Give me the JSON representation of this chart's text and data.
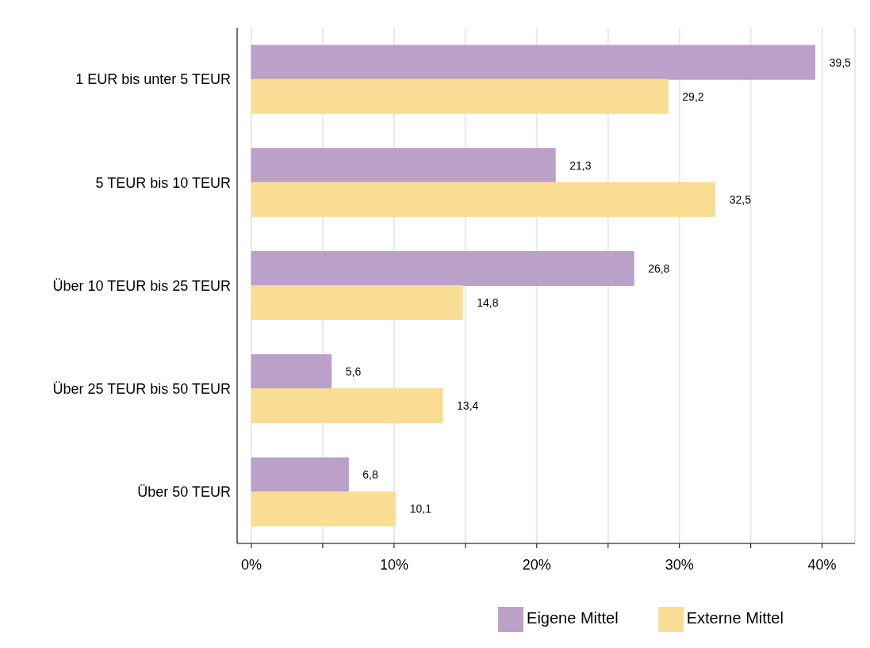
{
  "chart_data": {
    "type": "bar",
    "orientation": "horizontal",
    "categories": [
      "1 EUR bis unter 5 TEUR",
      "5 TEUR bis 10 TEUR",
      "Über 10 TEUR bis 25 TEUR",
      "Über 25 TEUR bis 50 TEUR",
      "Über 50 TEUR"
    ],
    "series": [
      {
        "name": "Eigene Mittel",
        "color": "#bba0c8",
        "values": [
          39.5,
          21.3,
          26.8,
          5.6,
          6.8
        ],
        "value_labels": [
          "39,5",
          "21,3",
          "26,8",
          "5,6",
          "6,8"
        ]
      },
      {
        "name": "Externe Mittel",
        "color": "#fadd95",
        "values": [
          29.2,
          32.5,
          14.8,
          13.4,
          10.1
        ],
        "value_labels": [
          "29,2",
          "32,5",
          "14,8",
          "13,4",
          "10,1"
        ]
      }
    ],
    "xlim": [
      -1,
      42.3
    ],
    "xticks": [
      {
        "value": 0,
        "label": "0%"
      },
      {
        "value": 5,
        "label": null
      },
      {
        "value": 10,
        "label": "10%"
      },
      {
        "value": 15,
        "label": null
      },
      {
        "value": 20,
        "label": "20%"
      },
      {
        "value": 25,
        "label": null
      },
      {
        "value": 30,
        "label": "30%"
      },
      {
        "value": 35,
        "label": null
      },
      {
        "value": 40,
        "label": "40%"
      }
    ],
    "grid": "x",
    "legend": "bottom"
  }
}
